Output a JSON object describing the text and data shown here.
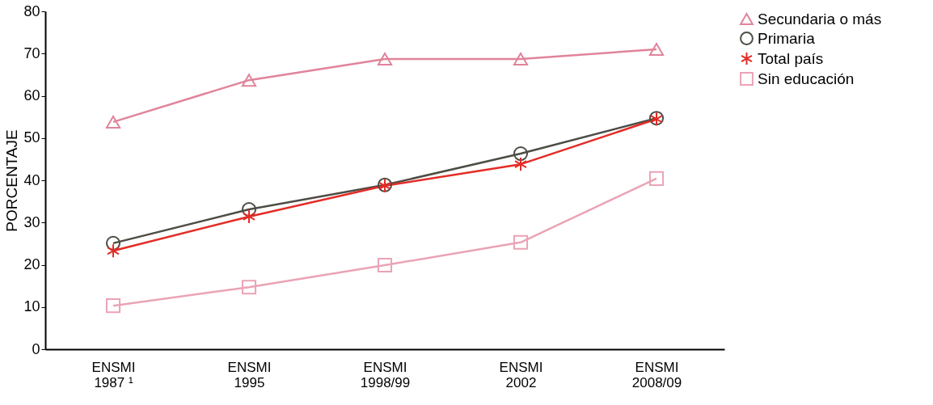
{
  "chart_data": {
    "type": "line",
    "ylabel": "PORCENTAJE",
    "categories": [
      "ENSMI\n1987 ¹",
      "ENSMI\n1995",
      "ENSMI\n1998/99",
      "ENSMI\n2002",
      "ENSMI\n2008/09"
    ],
    "ylim": [
      0,
      80
    ],
    "yticks": [
      0,
      10,
      20,
      30,
      40,
      50,
      60,
      70,
      80
    ],
    "grid": false,
    "legend": "right",
    "line_style": "solid",
    "series": [
      {
        "name": "Secundaria o más",
        "color": "#e0849a",
        "marker": "triangle",
        "values": [
          53.8,
          63.7,
          68.7,
          68.7,
          71.0
        ]
      },
      {
        "name": "Primaria",
        "color": "#4d4d45",
        "marker": "circle",
        "values": [
          25.1,
          33.1,
          38.9,
          46.3,
          54.7
        ]
      },
      {
        "name": "Total país",
        "color": "#e32b26",
        "marker": "cross",
        "values": [
          23.3,
          31.4,
          38.7,
          43.8,
          54.5
        ]
      },
      {
        "name": "Sin educación",
        "color": "#eba3b5",
        "marker": "square",
        "values": [
          10.3,
          14.7,
          19.9,
          25.3,
          40.4
        ]
      }
    ]
  }
}
